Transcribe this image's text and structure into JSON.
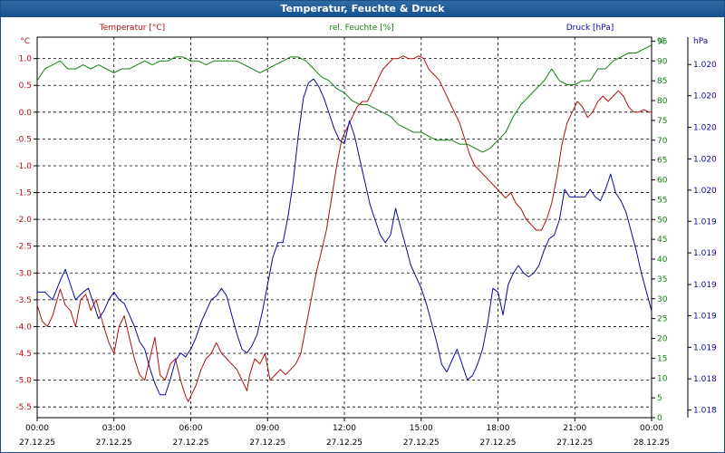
{
  "window": {
    "title": "Temperatur, Feuchte & Druck"
  },
  "chart_data": {
    "type": "line",
    "title": "Temperatur, Feuchte & Druck",
    "grid": true,
    "x_ticks": [
      {
        "h": 0,
        "time": "00:00",
        "date": "27.12.25"
      },
      {
        "h": 3,
        "time": "03:00",
        "date": "27.12.25"
      },
      {
        "h": 6,
        "time": "06:00",
        "date": "27.12.25"
      },
      {
        "h": 9,
        "time": "09:00",
        "date": "27.12.25"
      },
      {
        "h": 12,
        "time": "12:00",
        "date": "27.12.25"
      },
      {
        "h": 15,
        "time": "15:00",
        "date": "27.12.25"
      },
      {
        "h": 18,
        "time": "18:00",
        "date": "27.12.25"
      },
      {
        "h": 21,
        "time": "21:00",
        "date": "27.12.25"
      },
      {
        "h": 24,
        "time": "00:00",
        "date": "28.12.25"
      }
    ],
    "xlim": [
      0,
      24
    ],
    "temperature": {
      "name": "Temperatur [°C]",
      "unit": "°C",
      "color": "#b01010",
      "ylim": [
        -5.7,
        1.4
      ],
      "ticks": [
        1.0,
        0.5,
        0.0,
        -0.5,
        -1.0,
        -1.5,
        -2.0,
        -2.5,
        -3.0,
        -3.5,
        -4.0,
        -4.5,
        -5.0,
        -5.5
      ],
      "tick_labels": [
        "1.0",
        "0.5",
        "0.0",
        "-0.5",
        "-1.0",
        "-1.5",
        "-2.0",
        "-2.5",
        "-3.0",
        "-3.5",
        "-4.0",
        "-4.5",
        "-5.0",
        "-5.5"
      ],
      "points": [
        [
          0,
          -3.6
        ],
        [
          0.2,
          -3.9
        ],
        [
          0.4,
          -4.0
        ],
        [
          0.6,
          -3.8
        ],
        [
          0.9,
          -3.3
        ],
        [
          1.1,
          -3.6
        ],
        [
          1.3,
          -3.7
        ],
        [
          1.5,
          -4.0
        ],
        [
          1.7,
          -3.5
        ],
        [
          1.9,
          -3.4
        ],
        [
          2.1,
          -3.7
        ],
        [
          2.3,
          -3.5
        ],
        [
          2.6,
          -4.0
        ],
        [
          2.8,
          -4.3
        ],
        [
          3.0,
          -4.5
        ],
        [
          3.2,
          -4.0
        ],
        [
          3.4,
          -3.8
        ],
        [
          3.6,
          -4.2
        ],
        [
          3.8,
          -4.6
        ],
        [
          4.0,
          -4.9
        ],
        [
          4.2,
          -5.0
        ],
        [
          4.4,
          -4.6
        ],
        [
          4.6,
          -4.2
        ],
        [
          4.8,
          -4.9
        ],
        [
          5.0,
          -5.0
        ],
        [
          5.2,
          -4.7
        ],
        [
          5.4,
          -4.6
        ],
        [
          5.6,
          -5.0
        ],
        [
          5.8,
          -5.3
        ],
        [
          5.9,
          -5.4
        ],
        [
          6.0,
          -5.3
        ],
        [
          6.2,
          -5.1
        ],
        [
          6.4,
          -4.8
        ],
        [
          6.6,
          -4.6
        ],
        [
          6.8,
          -4.5
        ],
        [
          7.0,
          -4.3
        ],
        [
          7.2,
          -4.5
        ],
        [
          7.4,
          -4.6
        ],
        [
          7.6,
          -4.7
        ],
        [
          7.8,
          -4.8
        ],
        [
          8.0,
          -5.0
        ],
        [
          8.2,
          -5.2
        ],
        [
          8.3,
          -4.9
        ],
        [
          8.5,
          -4.6
        ],
        [
          8.7,
          -4.7
        ],
        [
          8.9,
          -4.5
        ],
        [
          9.1,
          -5.0
        ],
        [
          9.3,
          -4.9
        ],
        [
          9.5,
          -4.8
        ],
        [
          9.7,
          -4.9
        ],
        [
          9.9,
          -4.8
        ],
        [
          10.1,
          -4.7
        ],
        [
          10.3,
          -4.5
        ],
        [
          10.5,
          -4.0
        ],
        [
          10.7,
          -3.5
        ],
        [
          10.9,
          -3.0
        ],
        [
          11.1,
          -2.6
        ],
        [
          11.3,
          -2.2
        ],
        [
          11.5,
          -1.6
        ],
        [
          11.7,
          -1.0
        ],
        [
          11.9,
          -0.5
        ],
        [
          12.1,
          -0.3
        ],
        [
          12.3,
          -0.1
        ],
        [
          12.5,
          0.1
        ],
        [
          12.7,
          0.2
        ],
        [
          12.9,
          0.2
        ],
        [
          13.1,
          0.4
        ],
        [
          13.3,
          0.6
        ],
        [
          13.5,
          0.8
        ],
        [
          13.7,
          0.9
        ],
        [
          13.9,
          1.0
        ],
        [
          14.1,
          1.0
        ],
        [
          14.3,
          1.05
        ],
        [
          14.5,
          1.0
        ],
        [
          14.7,
          1.0
        ],
        [
          14.9,
          1.05
        ],
        [
          15.1,
          1.0
        ],
        [
          15.3,
          0.8
        ],
        [
          15.5,
          0.7
        ],
        [
          15.7,
          0.6
        ],
        [
          15.9,
          0.4
        ],
        [
          16.1,
          0.2
        ],
        [
          16.3,
          0.0
        ],
        [
          16.5,
          -0.2
        ],
        [
          16.7,
          -0.5
        ],
        [
          16.9,
          -0.8
        ],
        [
          17.1,
          -1.0
        ],
        [
          17.3,
          -1.1
        ],
        [
          17.5,
          -1.2
        ],
        [
          17.7,
          -1.3
        ],
        [
          17.9,
          -1.4
        ],
        [
          18.1,
          -1.5
        ],
        [
          18.3,
          -1.6
        ],
        [
          18.5,
          -1.5
        ],
        [
          18.7,
          -1.7
        ],
        [
          18.9,
          -1.8
        ],
        [
          19.1,
          -2.0
        ],
        [
          19.3,
          -2.1
        ],
        [
          19.5,
          -2.2
        ],
        [
          19.7,
          -2.2
        ],
        [
          19.9,
          -2.0
        ],
        [
          20.1,
          -1.7
        ],
        [
          20.3,
          -1.2
        ],
        [
          20.5,
          -0.6
        ],
        [
          20.7,
          -0.2
        ],
        [
          20.9,
          0.0
        ],
        [
          21.1,
          0.2
        ],
        [
          21.3,
          0.1
        ],
        [
          21.5,
          -0.1
        ],
        [
          21.7,
          0.0
        ],
        [
          21.9,
          0.2
        ],
        [
          22.1,
          0.3
        ],
        [
          22.3,
          0.2
        ],
        [
          22.5,
          0.3
        ],
        [
          22.7,
          0.4
        ],
        [
          22.9,
          0.3
        ],
        [
          23.1,
          0.1
        ],
        [
          23.3,
          0.0
        ],
        [
          23.5,
          0.0
        ],
        [
          23.7,
          0.05
        ],
        [
          23.9,
          0.0
        ],
        [
          24.0,
          0.0
        ]
      ]
    },
    "humidity": {
      "name": "rel. Feuchte [%]",
      "unit": "%",
      "color": "#138013",
      "ylim": [
        0,
        96
      ],
      "ticks": [
        0,
        5,
        10,
        15,
        20,
        25,
        30,
        35,
        40,
        45,
        50,
        55,
        60,
        65,
        70,
        75,
        80,
        85,
        90,
        95
      ],
      "tick_labels": [
        "0",
        "5",
        "10",
        "15",
        "20",
        "25",
        "30",
        "35",
        "40",
        "45",
        "50",
        "55",
        "60",
        "65",
        "70",
        "75",
        "80",
        "85",
        "90",
        "95"
      ],
      "points": [
        [
          0,
          85
        ],
        [
          0.3,
          88
        ],
        [
          0.6,
          89
        ],
        [
          0.9,
          90
        ],
        [
          1.2,
          88
        ],
        [
          1.5,
          88
        ],
        [
          1.8,
          89
        ],
        [
          2.1,
          88
        ],
        [
          2.4,
          89
        ],
        [
          2.7,
          88
        ],
        [
          3.0,
          87
        ],
        [
          3.3,
          88
        ],
        [
          3.6,
          88
        ],
        [
          3.9,
          89
        ],
        [
          4.2,
          90
        ],
        [
          4.5,
          89
        ],
        [
          4.8,
          90
        ],
        [
          5.1,
          90
        ],
        [
          5.4,
          91
        ],
        [
          5.7,
          91
        ],
        [
          6.0,
          90
        ],
        [
          6.3,
          90
        ],
        [
          6.6,
          89
        ],
        [
          6.9,
          90
        ],
        [
          7.2,
          90
        ],
        [
          7.5,
          90
        ],
        [
          7.8,
          90
        ],
        [
          8.1,
          89
        ],
        [
          8.4,
          88
        ],
        [
          8.7,
          87
        ],
        [
          9.0,
          88
        ],
        [
          9.3,
          89
        ],
        [
          9.6,
          90
        ],
        [
          9.9,
          91
        ],
        [
          10.2,
          91
        ],
        [
          10.5,
          90
        ],
        [
          10.8,
          88
        ],
        [
          11.1,
          86
        ],
        [
          11.4,
          85
        ],
        [
          11.7,
          83
        ],
        [
          12.0,
          82
        ],
        [
          12.3,
          80
        ],
        [
          12.6,
          79
        ],
        [
          12.9,
          79
        ],
        [
          13.2,
          78
        ],
        [
          13.5,
          77
        ],
        [
          13.8,
          76
        ],
        [
          14.1,
          74
        ],
        [
          14.4,
          73
        ],
        [
          14.7,
          72
        ],
        [
          15.0,
          72
        ],
        [
          15.3,
          71
        ],
        [
          15.6,
          70
        ],
        [
          15.9,
          70
        ],
        [
          16.2,
          70
        ],
        [
          16.5,
          69
        ],
        [
          16.8,
          69
        ],
        [
          17.1,
          68
        ],
        [
          17.4,
          67
        ],
        [
          17.7,
          68
        ],
        [
          18.0,
          70
        ],
        [
          18.3,
          72
        ],
        [
          18.6,
          76
        ],
        [
          18.9,
          79
        ],
        [
          19.2,
          81
        ],
        [
          19.5,
          83
        ],
        [
          19.8,
          85
        ],
        [
          20.1,
          88
        ],
        [
          20.4,
          85
        ],
        [
          20.7,
          84
        ],
        [
          21.0,
          84
        ],
        [
          21.3,
          85
        ],
        [
          21.6,
          85
        ],
        [
          21.9,
          88
        ],
        [
          22.2,
          88
        ],
        [
          22.5,
          90
        ],
        [
          22.8,
          91
        ],
        [
          23.1,
          92
        ],
        [
          23.4,
          92
        ],
        [
          23.7,
          93
        ],
        [
          24.0,
          94
        ]
      ]
    },
    "pressure": {
      "name": "Druck [hPa]",
      "unit": "hPa",
      "color": "#0a0a9a",
      "ylim": [
        0,
        1
      ],
      "tick_positions": [
        0.02,
        0.102,
        0.185,
        0.268,
        0.35,
        0.433,
        0.516,
        0.598,
        0.68,
        0.763,
        0.846,
        0.928
      ],
      "tick_labels": [
        "1.018",
        "1.018",
        "1.019",
        "1.019",
        "1.019",
        "1.019",
        "1.019",
        "1.020",
        "1.020",
        "1.020",
        "1.020",
        "1.020"
      ],
      "points": [
        [
          0,
          0.33
        ],
        [
          0.3,
          0.33
        ],
        [
          0.6,
          0.31
        ],
        [
          0.9,
          0.36
        ],
        [
          1.1,
          0.39
        ],
        [
          1.3,
          0.35
        ],
        [
          1.5,
          0.31
        ],
        [
          1.8,
          0.33
        ],
        [
          2.0,
          0.34
        ],
        [
          2.2,
          0.3
        ],
        [
          2.4,
          0.26
        ],
        [
          2.6,
          0.28
        ],
        [
          2.8,
          0.31
        ],
        [
          3.0,
          0.33
        ],
        [
          3.2,
          0.31
        ],
        [
          3.4,
          0.3
        ],
        [
          3.6,
          0.27
        ],
        [
          3.8,
          0.24
        ],
        [
          4.0,
          0.2
        ],
        [
          4.2,
          0.18
        ],
        [
          4.4,
          0.13
        ],
        [
          4.6,
          0.09
        ],
        [
          4.8,
          0.06
        ],
        [
          5.0,
          0.06
        ],
        [
          5.2,
          0.1
        ],
        [
          5.4,
          0.15
        ],
        [
          5.6,
          0.17
        ],
        [
          5.8,
          0.16
        ],
        [
          6.0,
          0.18
        ],
        [
          6.2,
          0.21
        ],
        [
          6.4,
          0.25
        ],
        [
          6.6,
          0.28
        ],
        [
          6.8,
          0.31
        ],
        [
          7.0,
          0.32
        ],
        [
          7.2,
          0.34
        ],
        [
          7.4,
          0.32
        ],
        [
          7.6,
          0.27
        ],
        [
          7.8,
          0.22
        ],
        [
          8.0,
          0.18
        ],
        [
          8.2,
          0.17
        ],
        [
          8.4,
          0.19
        ],
        [
          8.6,
          0.22
        ],
        [
          8.8,
          0.28
        ],
        [
          9.0,
          0.35
        ],
        [
          9.2,
          0.42
        ],
        [
          9.4,
          0.46
        ],
        [
          9.6,
          0.46
        ],
        [
          9.8,
          0.53
        ],
        [
          10.0,
          0.62
        ],
        [
          10.2,
          0.74
        ],
        [
          10.4,
          0.84
        ],
        [
          10.6,
          0.88
        ],
        [
          10.8,
          0.89
        ],
        [
          11.0,
          0.87
        ],
        [
          11.2,
          0.84
        ],
        [
          11.4,
          0.8
        ],
        [
          11.6,
          0.76
        ],
        [
          11.8,
          0.73
        ],
        [
          12.0,
          0.72
        ],
        [
          12.2,
          0.78
        ],
        [
          12.4,
          0.74
        ],
        [
          12.6,
          0.68
        ],
        [
          12.8,
          0.62
        ],
        [
          13.0,
          0.56
        ],
        [
          13.2,
          0.52
        ],
        [
          13.4,
          0.48
        ],
        [
          13.6,
          0.46
        ],
        [
          13.8,
          0.48
        ],
        [
          14.0,
          0.55
        ],
        [
          14.2,
          0.5
        ],
        [
          14.4,
          0.45
        ],
        [
          14.6,
          0.4
        ],
        [
          14.8,
          0.37
        ],
        [
          15.0,
          0.34
        ],
        [
          15.2,
          0.3
        ],
        [
          15.4,
          0.25
        ],
        [
          15.6,
          0.2
        ],
        [
          15.8,
          0.14
        ],
        [
          16.0,
          0.12
        ],
        [
          16.2,
          0.15
        ],
        [
          16.4,
          0.18
        ],
        [
          16.6,
          0.14
        ],
        [
          16.8,
          0.1
        ],
        [
          17.0,
          0.11
        ],
        [
          17.2,
          0.14
        ],
        [
          17.4,
          0.18
        ],
        [
          17.6,
          0.25
        ],
        [
          17.8,
          0.34
        ],
        [
          18.0,
          0.33
        ],
        [
          18.2,
          0.27
        ],
        [
          18.4,
          0.35
        ],
        [
          18.6,
          0.38
        ],
        [
          18.8,
          0.4
        ],
        [
          19.0,
          0.38
        ],
        [
          19.2,
          0.37
        ],
        [
          19.4,
          0.38
        ],
        [
          19.6,
          0.4
        ],
        [
          19.8,
          0.44
        ],
        [
          20.0,
          0.47
        ],
        [
          20.2,
          0.48
        ],
        [
          20.4,
          0.52
        ],
        [
          20.6,
          0.6
        ],
        [
          20.8,
          0.58
        ],
        [
          21.0,
          0.58
        ],
        [
          21.2,
          0.58
        ],
        [
          21.4,
          0.58
        ],
        [
          21.6,
          0.6
        ],
        [
          21.8,
          0.58
        ],
        [
          22.0,
          0.57
        ],
        [
          22.2,
          0.6
        ],
        [
          22.4,
          0.64
        ],
        [
          22.6,
          0.59
        ],
        [
          22.8,
          0.57
        ],
        [
          23.0,
          0.54
        ],
        [
          23.2,
          0.49
        ],
        [
          23.4,
          0.44
        ],
        [
          23.6,
          0.38
        ],
        [
          23.8,
          0.33
        ],
        [
          24.0,
          0.28
        ]
      ]
    }
  }
}
